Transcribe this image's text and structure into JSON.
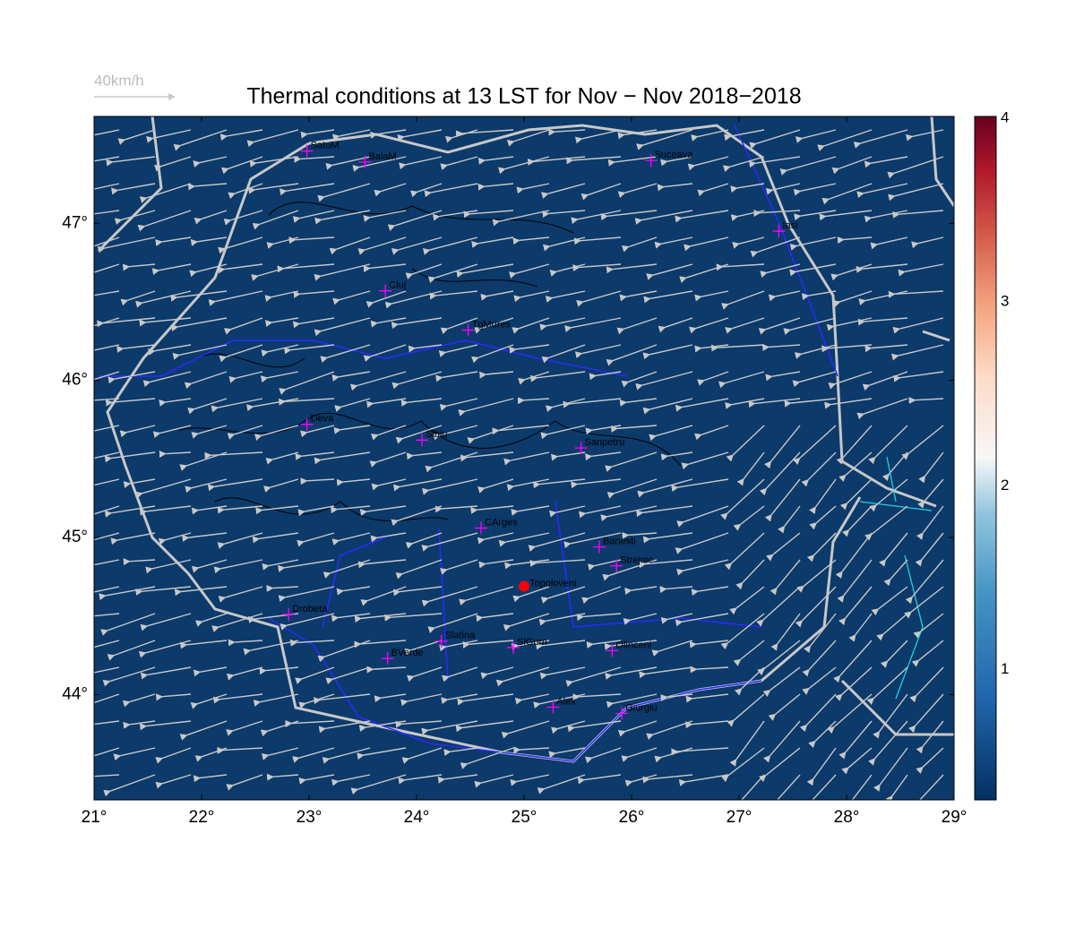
{
  "title": "Thermal conditions at 13 LST for Nov − Nov  2018−2018",
  "wind_legend": "40km/h",
  "map": {
    "xlim": [
      21,
      29
    ],
    "ylim": [
      43.33,
      47.68
    ],
    "xticks": [
      {
        "value": 21,
        "label": "21°"
      },
      {
        "value": 22,
        "label": "22°"
      },
      {
        "value": 23,
        "label": "23°"
      },
      {
        "value": 24,
        "label": "24°"
      },
      {
        "value": 25,
        "label": "25°"
      },
      {
        "value": 26,
        "label": "26°"
      },
      {
        "value": 27,
        "label": "27°"
      },
      {
        "value": 28,
        "label": "28°"
      },
      {
        "value": 29,
        "label": "29°"
      }
    ],
    "yticks": [
      {
        "value": 44,
        "label": "44°"
      },
      {
        "value": 45,
        "label": "45°"
      },
      {
        "value": 46,
        "label": "46°"
      },
      {
        "value": 47,
        "label": "47°"
      }
    ],
    "cities": [
      {
        "name": "SatuM",
        "lon": 22.98,
        "lat": 47.46
      },
      {
        "name": "BaiaM",
        "lon": 23.52,
        "lat": 47.39
      },
      {
        "name": "Suceava",
        "lon": 26.18,
        "lat": 47.4
      },
      {
        "name": "Iasi",
        "lon": 27.37,
        "lat": 46.95
      },
      {
        "name": "Cluj",
        "lon": 23.71,
        "lat": 46.57
      },
      {
        "name": "TgMures",
        "lon": 24.48,
        "lat": 46.32
      },
      {
        "name": "Deva",
        "lon": 22.98,
        "lat": 45.72
      },
      {
        "name": "Sibiu",
        "lon": 24.05,
        "lat": 45.62
      },
      {
        "name": "Sanpetru",
        "lon": 25.53,
        "lat": 45.57
      },
      {
        "name": "CArges",
        "lon": 24.6,
        "lat": 45.06
      },
      {
        "name": "Banesti",
        "lon": 25.7,
        "lat": 44.94
      },
      {
        "name": "Strejnic",
        "lon": 25.86,
        "lat": 44.82
      },
      {
        "name": "Drobeta",
        "lon": 22.81,
        "lat": 44.51
      },
      {
        "name": "Slatina",
        "lon": 24.23,
        "lat": 44.34
      },
      {
        "name": "SlGum",
        "lon": 24.9,
        "lat": 44.3
      },
      {
        "name": "BVerde",
        "lon": 23.73,
        "lat": 44.23
      },
      {
        "name": "Olinceni",
        "lon": 25.82,
        "lat": 44.28
      },
      {
        "name": "Alex",
        "lon": 25.27,
        "lat": 43.92
      },
      {
        "name": "Giurgiu",
        "lon": 25.91,
        "lat": 43.88
      }
    ],
    "highlight": {
      "name": "Topoloveni",
      "lon": 25.0,
      "lat": 44.69,
      "color": "#ff0000"
    }
  },
  "colorbar": {
    "clim": [
      0.29,
      4.01
    ],
    "ticks": [
      1,
      2,
      3,
      4
    ]
  }
}
